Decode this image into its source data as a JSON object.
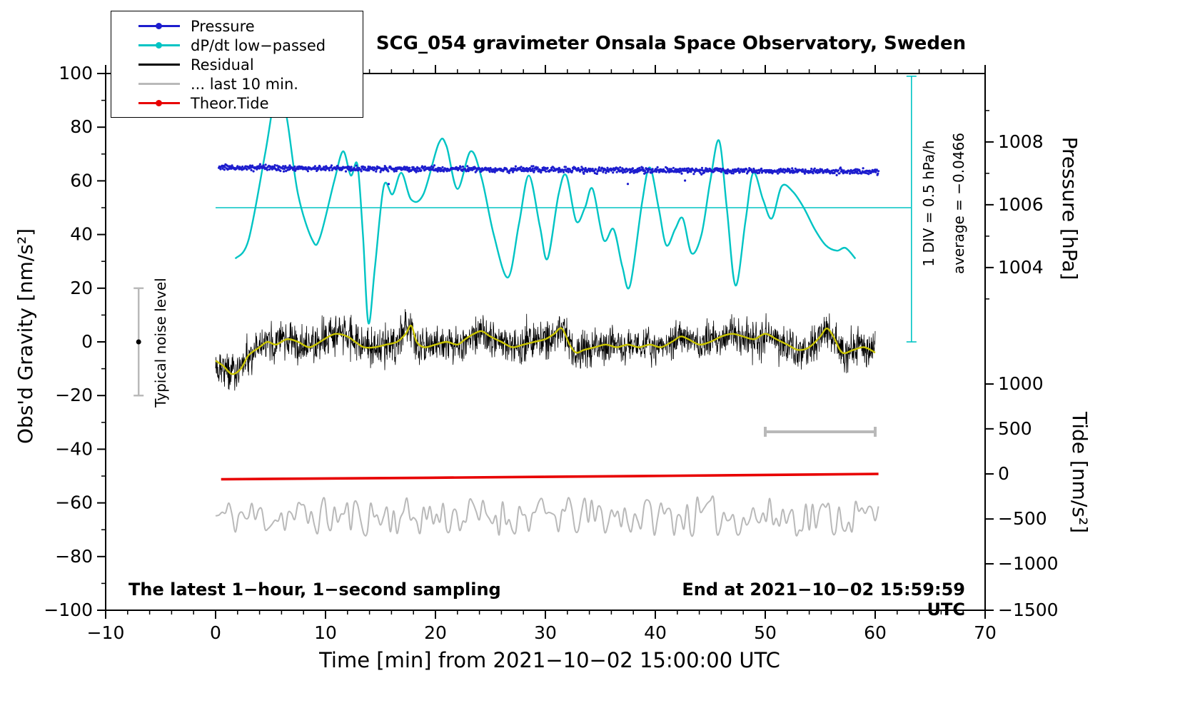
{
  "title": "SCG_054 gravimeter Onsala Space Observatory, Sweden",
  "colors": {
    "pressure": "#1d1dce",
    "dpdt": "#00c4c4",
    "residual": "#000000",
    "last10": "#b9b9b9",
    "tide": "#e80000",
    "smoothed": "#c9c400",
    "axis": "#000000"
  },
  "legend": {
    "items": [
      {
        "label": "Pressure",
        "color_key": "pressure",
        "marker": "dot"
      },
      {
        "label": "dP/dt low−passed",
        "color_key": "dpdt",
        "marker": "dot"
      },
      {
        "label": "Residual",
        "color_key": "residual",
        "marker": "line"
      },
      {
        "label": "... last 10 min.",
        "color_key": "last10",
        "marker": "line"
      },
      {
        "label": "Theor.Tide",
        "color_key": "tide",
        "marker": "dot"
      }
    ]
  },
  "annotations": {
    "div_note": "1 DIV = 0.5 hPa/h",
    "average_note": "average = −0.0466",
    "noise_label": "Typical noise level",
    "sampling_note": "The latest 1−hour, 1−second sampling",
    "end_note": "End at 2021−10−02 15:59:59 UTC"
  },
  "chart_data": {
    "type": "line",
    "title": "SCG_054 gravimeter Onsala Space Observatory, Sweden",
    "xlabel": "Time [min] from 2021−10−02 15:00:00 UTC",
    "ylabel_left": "Obs'd Gravity [nm/s²]",
    "ylabel_right_top": "Pressure [hPa]",
    "ylabel_right_bottom": "Tide [nm/s²]",
    "x_range": [
      -10,
      70
    ],
    "y_left_range": [
      -100,
      100
    ],
    "x_major_ticks": [
      -10,
      0,
      10,
      20,
      30,
      40,
      50,
      60,
      70
    ],
    "x_minor_step": 2,
    "y_major_ticks": [
      -100,
      -80,
      -60,
      -40,
      -20,
      0,
      20,
      40,
      60,
      80,
      100
    ],
    "y_minor_step": 10,
    "pressure_axis": {
      "unit": "hPa",
      "major_ticks": [
        1008,
        1006,
        1004
      ],
      "gravity_positions": [
        74.5,
        51.1,
        27.7
      ],
      "minor_ticks_gravity": [
        86.2,
        62.8,
        39.4,
        16.0
      ]
    },
    "tide_axis": {
      "unit": "nm/s²",
      "major_ticks": [
        1000,
        500,
        0,
        -500,
        -1000,
        -1500
      ],
      "gravity_positions": [
        -15.7,
        -32.4,
        -49.2,
        -66.0,
        -82.7,
        -100
      ]
    },
    "series": {
      "pressure_dots": {
        "x_start": 0.3,
        "x_end": 60.3,
        "sample_step_min": 0.05,
        "mean_start": 64.9,
        "mean_end": 63.4,
        "noise_sd": 0.52,
        "approx_hPa_mean": 1007.2
      },
      "dpdt_lowpassed": {
        "zero_line_gravity": 50,
        "div_value_hPa_per_h": 0.5,
        "x": [
          1.8,
          3,
          4.5,
          5.7,
          6.5,
          7.5,
          8.8,
          9.5,
          10.8,
          11.6,
          12.3,
          12.9,
          13.4,
          13.9,
          14.5,
          15.3,
          16.1,
          16.9,
          17.8,
          18.9,
          20.3,
          21,
          22,
          23.2,
          24.2,
          25.3,
          26.6,
          27.6,
          28.5,
          29.5,
          30.2,
          31.2,
          31.9,
          32.8,
          33.6,
          34.3,
          35.3,
          36.2,
          37,
          37.7,
          38.8,
          39.5,
          40.3,
          41,
          41.8,
          42.5,
          43.3,
          44.2,
          45,
          45.8,
          46.5,
          47.3,
          48.2,
          48.9,
          49.8,
          50.6,
          51.5,
          52.5,
          53.5,
          54.5,
          55.5,
          56.5,
          57.3,
          58.2
        ],
        "y_gravity": [
          31,
          38,
          70,
          97,
          83,
          55,
          38,
          39,
          60,
          71,
          62,
          66,
          40,
          7,
          28,
          58,
          55,
          63,
          53,
          55,
          74,
          73,
          57,
          71,
          61,
          40,
          24,
          44,
          62,
          43,
          31,
          55,
          62,
          45,
          50,
          57,
          38,
          42,
          28,
          21,
          52,
          65,
          50,
          36,
          42,
          46,
          33,
          40,
          60,
          75,
          50,
          21,
          45,
          63,
          53,
          46,
          58,
          56,
          50,
          42,
          36,
          34,
          35,
          31
        ]
      },
      "dpdt_scale": {
        "x": 63.3,
        "top_gravity": 99,
        "bottom_gravity": 0
      },
      "residual_smoothed": {
        "x": [
          0,
          0.7,
          1.5,
          2.3,
          3,
          4,
          4.7,
          5.5,
          6.5,
          7.5,
          8.5,
          9.5,
          10.3,
          11,
          12,
          12.7,
          13.5,
          14.5,
          15.5,
          16.5,
          17.3,
          17.8,
          18.3,
          19,
          20,
          21,
          22,
          22.7,
          23.5,
          24.2,
          25,
          26,
          27,
          28,
          29,
          30,
          30.8,
          31.5,
          32.2,
          32.8,
          33.5,
          34.5,
          35.5,
          36.5,
          37.5,
          38.5,
          39.5,
          40.5,
          41.5,
          42.3,
          43,
          44,
          45,
          46,
          47,
          48,
          49,
          50,
          51,
          52,
          53,
          54,
          55,
          55.6,
          56.2,
          57,
          58,
          59,
          60
        ],
        "y": [
          -7,
          -9,
          -12,
          -10,
          -5,
          -2,
          0,
          -1,
          1,
          0,
          -2,
          0,
          2,
          3,
          2,
          0,
          -2,
          -2,
          -1,
          0,
          3,
          6,
          0,
          -2,
          -1,
          0,
          -1,
          1,
          3,
          4,
          2,
          0,
          -2,
          -1,
          0,
          1,
          3,
          5,
          -1,
          -4,
          -3,
          -2,
          -1,
          -2,
          -1,
          -2,
          -1,
          -2,
          0,
          2,
          1,
          -1,
          0,
          2,
          3,
          2,
          1,
          3,
          1,
          -1,
          -3,
          -2,
          2,
          5,
          2,
          -4,
          -3,
          -2,
          -4
        ]
      },
      "residual_noise": {
        "sd": 3.4,
        "step_min": 0.03
      },
      "last_10_min": {
        "mean": -65,
        "amplitude": 7,
        "knot_step_min": 0.3,
        "x_start": 0,
        "x_end": 60.3
      },
      "theor_tide": {
        "x": [
          0.5,
          30,
          60.3
        ],
        "y_gravity": [
          -51.2,
          -50.3,
          -49.2
        ],
        "y_tide": [
          -60,
          -33,
          0
        ]
      }
    },
    "extras": {
      "noise_bar": {
        "x": -7,
        "y_low": -20,
        "y_high": 20,
        "dot_y": 0
      },
      "scale_bar": {
        "x1": 50,
        "x2": 60,
        "gravity_y": -33.5,
        "represents": "10 min"
      }
    }
  }
}
